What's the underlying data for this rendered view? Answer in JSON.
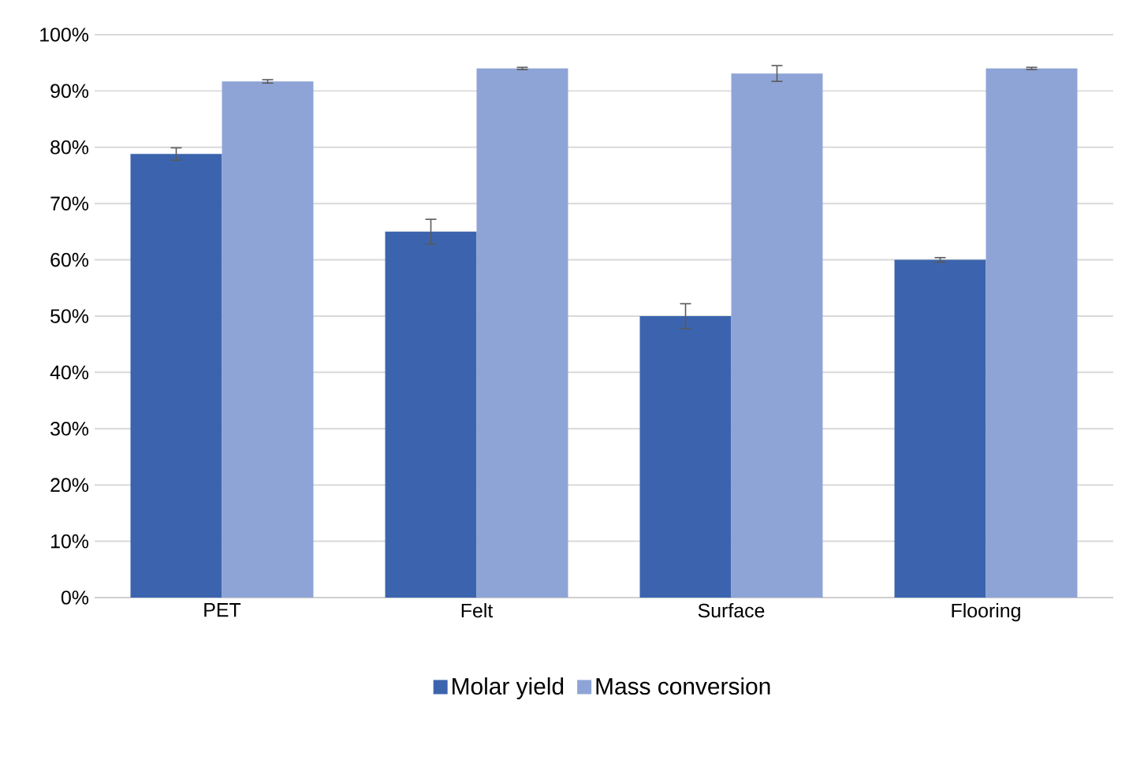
{
  "chart_data": {
    "type": "bar",
    "categories": [
      "PET",
      "Felt",
      "Surface",
      "Flooring"
    ],
    "series": [
      {
        "name": "Molar yield",
        "color": "#3c64ae",
        "values": [
          78.8,
          65,
          50,
          60
        ],
        "errors": [
          1.1,
          2.2,
          2.2,
          0.4
        ]
      },
      {
        "name": "Mass conversion",
        "color": "#8fa4d6",
        "values": [
          91.7,
          94,
          93.1,
          94
        ],
        "errors": [
          0.3,
          0.2,
          1.4,
          0.2
        ]
      }
    ],
    "ylim": [
      0,
      100
    ],
    "yticks": [
      {
        "value": 0,
        "label": "0%"
      },
      {
        "value": 10,
        "label": "10%"
      },
      {
        "value": 20,
        "label": "20%"
      },
      {
        "value": 30,
        "label": "30%"
      },
      {
        "value": 40,
        "label": "40%"
      },
      {
        "value": 50,
        "label": "50%"
      },
      {
        "value": 60,
        "label": "60%"
      },
      {
        "value": 70,
        "label": "70%"
      },
      {
        "value": 80,
        "label": "80%"
      },
      {
        "value": 90,
        "label": "90%"
      },
      {
        "value": 100,
        "label": "100%"
      }
    ],
    "grid": "y",
    "legend": "bottom"
  }
}
